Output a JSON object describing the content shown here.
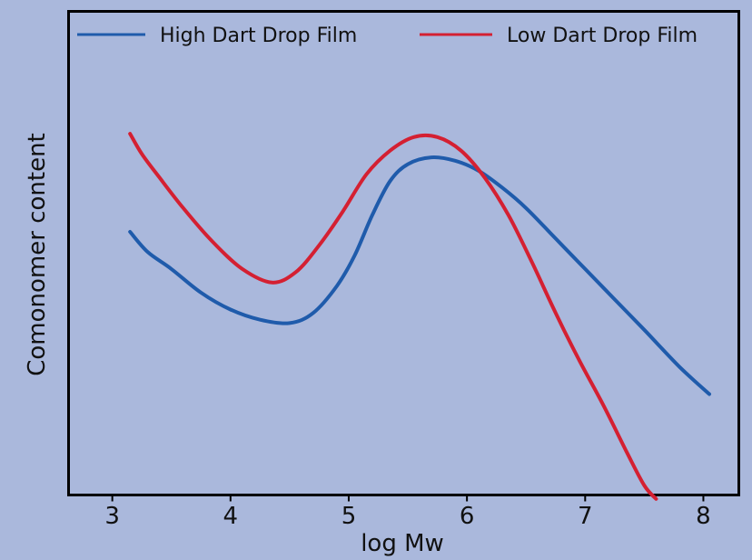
{
  "chart_data": {
    "type": "line",
    "title": "",
    "xlabel": "log Mw",
    "ylabel": "Comonomer content",
    "xlim": [
      2.63,
      8.3
    ],
    "xticks": [
      "3",
      "4",
      "5",
      "6",
      "7",
      "8"
    ],
    "yticks": [],
    "legend_position": "top",
    "grid": false,
    "series": [
      {
        "name": "High Dart Drop Film",
        "color": "#1f5bab",
        "x": [
          3.15,
          3.3,
          3.5,
          3.75,
          4.0,
          4.25,
          4.5,
          4.7,
          4.9,
          5.05,
          5.2,
          5.35,
          5.5,
          5.7,
          5.9,
          6.1,
          6.3,
          6.5,
          6.75,
          7.0,
          7.25,
          7.5,
          7.8,
          8.05
        ],
        "y": [
          0.57,
          0.51,
          0.46,
          0.39,
          0.34,
          0.31,
          0.3,
          0.33,
          0.41,
          0.5,
          0.62,
          0.72,
          0.77,
          0.79,
          0.78,
          0.75,
          0.7,
          0.64,
          0.55,
          0.46,
          0.37,
          0.28,
          0.17,
          0.09
        ]
      },
      {
        "name": "Low Dart Drop Film",
        "color": "#d42032",
        "x": [
          3.15,
          3.25,
          3.4,
          3.6,
          3.85,
          4.1,
          4.35,
          4.55,
          4.75,
          4.95,
          5.15,
          5.35,
          5.55,
          5.75,
          5.95,
          6.15,
          6.35,
          6.55,
          6.75,
          6.95,
          7.15,
          7.35,
          7.5,
          7.6
        ],
        "y": [
          0.86,
          0.8,
          0.73,
          0.64,
          0.54,
          0.46,
          0.42,
          0.45,
          0.53,
          0.63,
          0.74,
          0.81,
          0.85,
          0.85,
          0.81,
          0.73,
          0.62,
          0.48,
          0.33,
          0.19,
          0.06,
          -0.08,
          -0.18,
          -0.22
        ]
      }
    ]
  }
}
